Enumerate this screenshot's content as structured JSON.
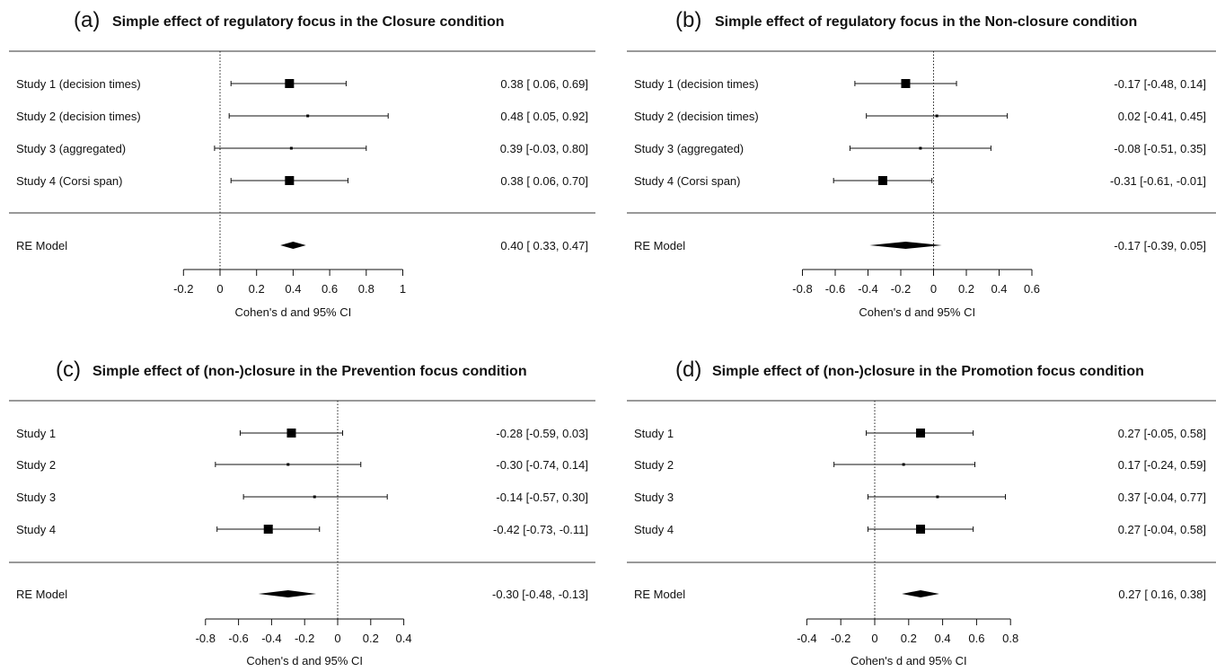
{
  "chart_data": [
    {
      "type": "forest",
      "panel_letter": "(a)",
      "title": "Simple effect of regulatory focus in the Closure condition",
      "xlabel": "Cohen's d and 95% CI",
      "xlim": [
        -0.2,
        1
      ],
      "xticks": [
        "-0.2",
        "0",
        "0.2",
        "0.4",
        "0.6",
        "0.8",
        "1"
      ],
      "xtick_values": [
        -0.2,
        0,
        0.2,
        0.4,
        0.6,
        0.8,
        1
      ],
      "reference_line": 0,
      "studies": [
        {
          "label": "Study 1 (decision times)",
          "estimate": 0.38,
          "lower": 0.06,
          "upper": 0.69,
          "text": "0.38 [ 0.06, 0.69]",
          "weight": "large"
        },
        {
          "label": "Study 2 (decision times)",
          "estimate": 0.48,
          "lower": 0.05,
          "upper": 0.92,
          "text": "0.48 [ 0.05, 0.92]",
          "weight": "small"
        },
        {
          "label": "Study 3 (aggregated)",
          "estimate": 0.39,
          "lower": -0.03,
          "upper": 0.8,
          "text": "0.39 [-0.03, 0.80]",
          "weight": "small"
        },
        {
          "label": "Study 4 (Corsi span)",
          "estimate": 0.38,
          "lower": 0.06,
          "upper": 0.7,
          "text": "0.38 [ 0.06, 0.70]",
          "weight": "large"
        }
      ],
      "summary": {
        "label": "RE Model",
        "estimate": 0.4,
        "lower": 0.33,
        "upper": 0.47,
        "text": "0.40 [ 0.33, 0.47]"
      }
    },
    {
      "type": "forest",
      "panel_letter": "(b)",
      "title": "Simple effect of regulatory focus in the Non-closure condition",
      "xlabel": "Cohen's d and 95% CI",
      "xlim": [
        -0.8,
        0.6
      ],
      "xticks": [
        "-0.8",
        "-0.6",
        "-0.4",
        "-0.2",
        "0",
        "0.2",
        "0.4",
        "0.6"
      ],
      "xtick_values": [
        -0.8,
        -0.6,
        -0.4,
        -0.2,
        0,
        0.2,
        0.4,
        0.6
      ],
      "reference_line": 0,
      "studies": [
        {
          "label": "Study 1 (decision times)",
          "estimate": -0.17,
          "lower": -0.48,
          "upper": 0.14,
          "text": "-0.17 [-0.48,  0.14]",
          "weight": "large"
        },
        {
          "label": "Study 2 (decision times)",
          "estimate": 0.02,
          "lower": -0.41,
          "upper": 0.45,
          "text": "0.02 [-0.41,  0.45]",
          "weight": "small"
        },
        {
          "label": "Study 3 (aggregated)",
          "estimate": -0.08,
          "lower": -0.51,
          "upper": 0.35,
          "text": "-0.08 [-0.51,  0.35]",
          "weight": "small"
        },
        {
          "label": "Study 4 (Corsi span)",
          "estimate": -0.31,
          "lower": -0.61,
          "upper": -0.01,
          "text": "-0.31 [-0.61, -0.01]",
          "weight": "large"
        }
      ],
      "summary": {
        "label": "RE Model",
        "estimate": -0.17,
        "lower": -0.39,
        "upper": 0.05,
        "text": "-0.17 [-0.39,  0.05]"
      }
    },
    {
      "type": "forest",
      "panel_letter": "(c)",
      "title": "Simple effect of (non-)closure in the Prevention focus condition",
      "xlabel": "Cohen's d and 95% CI",
      "xlim": [
        -0.8,
        0.4
      ],
      "xticks": [
        "-0.8",
        "-0.6",
        "-0.4",
        "-0.2",
        "0",
        "0.2",
        "0.4"
      ],
      "xtick_values": [
        -0.8,
        -0.6,
        -0.4,
        -0.2,
        0,
        0.2,
        0.4
      ],
      "reference_line": 0,
      "studies": [
        {
          "label": "Study 1",
          "estimate": -0.28,
          "lower": -0.59,
          "upper": 0.03,
          "text": "-0.28 [-0.59,  0.03]",
          "weight": "large"
        },
        {
          "label": "Study 2",
          "estimate": -0.3,
          "lower": -0.74,
          "upper": 0.14,
          "text": "-0.30 [-0.74,  0.14]",
          "weight": "small"
        },
        {
          "label": "Study 3",
          "estimate": -0.14,
          "lower": -0.57,
          "upper": 0.3,
          "text": "-0.14 [-0.57,  0.30]",
          "weight": "small"
        },
        {
          "label": "Study 4",
          "estimate": -0.42,
          "lower": -0.73,
          "upper": -0.11,
          "text": "-0.42 [-0.73, -0.11]",
          "weight": "large"
        }
      ],
      "summary": {
        "label": "RE Model",
        "estimate": -0.3,
        "lower": -0.48,
        "upper": -0.13,
        "text": "-0.30 [-0.48, -0.13]"
      }
    },
    {
      "type": "forest",
      "panel_letter": "(d)",
      "title": "Simple effect of (non-)closure in the Promotion focus condition",
      "xlabel": "Cohen's d and 95% CI",
      "xlim": [
        -0.4,
        0.8
      ],
      "xticks": [
        "-0.4",
        "-0.2",
        "0",
        "0.2",
        "0.4",
        "0.6",
        "0.8"
      ],
      "xtick_values": [
        -0.4,
        -0.2,
        0,
        0.2,
        0.4,
        0.6,
        0.8
      ],
      "reference_line": 0,
      "studies": [
        {
          "label": "Study 1",
          "estimate": 0.27,
          "lower": -0.05,
          "upper": 0.58,
          "text": "0.27 [-0.05, 0.58]",
          "weight": "large"
        },
        {
          "label": "Study 2",
          "estimate": 0.17,
          "lower": -0.24,
          "upper": 0.59,
          "text": "0.17 [-0.24, 0.59]",
          "weight": "small"
        },
        {
          "label": "Study 3",
          "estimate": 0.37,
          "lower": -0.04,
          "upper": 0.77,
          "text": "0.37 [-0.04, 0.77]",
          "weight": "small"
        },
        {
          "label": "Study 4",
          "estimate": 0.27,
          "lower": -0.04,
          "upper": 0.58,
          "text": "0.27 [-0.04, 0.58]",
          "weight": "large"
        }
      ],
      "summary": {
        "label": "RE Model",
        "estimate": 0.27,
        "lower": 0.16,
        "upper": 0.38,
        "text": "0.27 [ 0.16, 0.38]"
      }
    }
  ]
}
